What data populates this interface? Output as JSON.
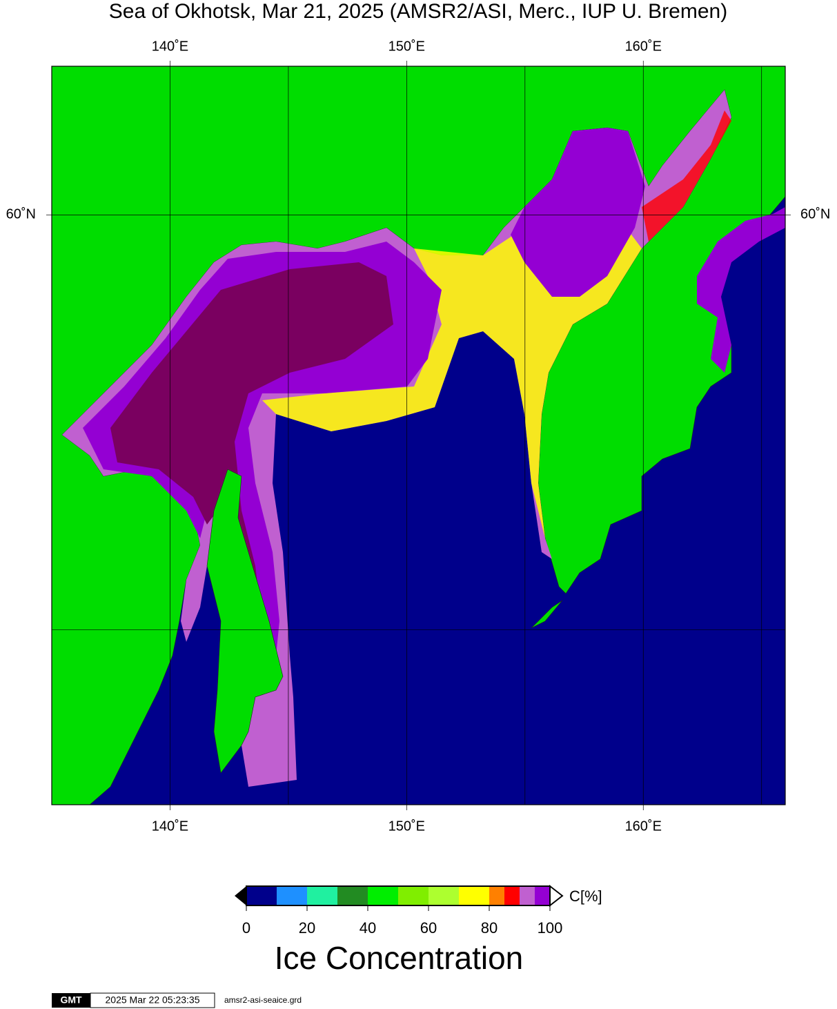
{
  "title": "Sea of Okhotsk, Mar 21, 2025 (AMSR2/ASI, Merc., IUP U. Bremen)",
  "map": {
    "xlim": [
      135,
      166
    ],
    "ylim": [
      45,
      63
    ],
    "lon_ticks": [
      {
        "value": 140,
        "label": "140˚E"
      },
      {
        "value": 150,
        "label": "150˚E"
      },
      {
        "value": 160,
        "label": "160˚E"
      }
    ],
    "lat_ticks": [
      {
        "value": 60,
        "label": "60˚N"
      }
    ],
    "grid_lon": [
      145,
      155,
      165
    ],
    "grid_lat": [
      50
    ]
  },
  "colorbar": {
    "bounds": [
      0,
      10,
      20,
      30,
      40,
      50,
      60,
      70,
      80,
      85,
      90,
      95,
      100
    ],
    "colors": [
      "#00008b",
      "#1e90ff",
      "#20f0a0",
      "#228b22",
      "#00ee00",
      "#80ee00",
      "#adff2f",
      "#ffff00",
      "#ff8000",
      "#ff0000",
      "#c060d0",
      "#9400d3"
    ],
    "ticks": [
      0,
      20,
      40,
      60,
      80,
      100
    ],
    "label": "C[%]",
    "title": "Ice Concentration"
  },
  "footer": {
    "logo": "GMT",
    "timestamp": "2025 Mar 22 05:23:35",
    "file": "amsr2-asi-seaice.grd"
  }
}
